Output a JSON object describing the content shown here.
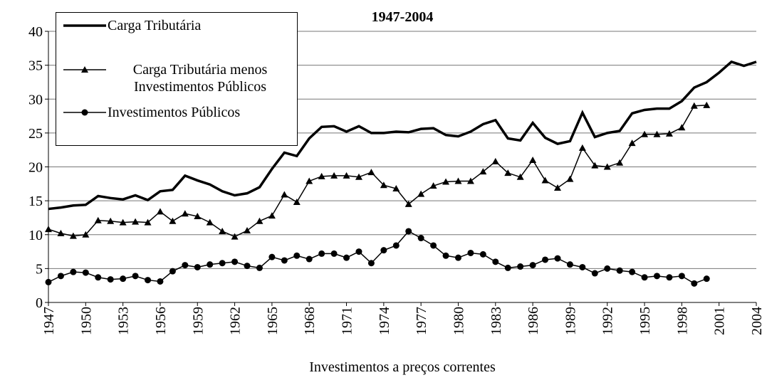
{
  "chart_data": {
    "type": "line",
    "title": "1947-2004",
    "x_label": "Investimentos a preços correntes",
    "x": [
      1947,
      1948,
      1949,
      1950,
      1951,
      1952,
      1953,
      1954,
      1955,
      1956,
      1957,
      1958,
      1959,
      1960,
      1961,
      1962,
      1963,
      1964,
      1965,
      1966,
      1967,
      1968,
      1969,
      1970,
      1971,
      1972,
      1973,
      1974,
      1975,
      1976,
      1977,
      1978,
      1979,
      1980,
      1981,
      1982,
      1983,
      1984,
      1985,
      1986,
      1987,
      1988,
      1989,
      1990,
      1991,
      1992,
      1993,
      1994,
      1995,
      1996,
      1997,
      1998,
      1999,
      2000,
      2001,
      2002,
      2003,
      2004
    ],
    "xlim": [
      1947,
      2004
    ],
    "xticks": [
      1947,
      1950,
      1953,
      1956,
      1959,
      1962,
      1965,
      1968,
      1971,
      1974,
      1977,
      1980,
      1983,
      1986,
      1989,
      1992,
      1995,
      1998,
      2001,
      2004
    ],
    "ylim": [
      0,
      40
    ],
    "yticks": [
      0,
      5,
      10,
      15,
      20,
      25,
      30,
      35,
      40
    ],
    "grid": true,
    "legend": "top-left",
    "series": [
      {
        "name": "Carga Tributária",
        "color": "#000000",
        "marker": "none",
        "values": [
          13.8,
          14.0,
          14.3,
          14.4,
          15.7,
          15.4,
          15.2,
          15.8,
          15.1,
          16.4,
          16.6,
          18.7,
          18.0,
          17.4,
          16.4,
          15.8,
          16.1,
          17.0,
          19.7,
          22.1,
          21.6,
          24.2,
          25.9,
          26.0,
          25.2,
          26.0,
          25.0,
          25.0,
          25.2,
          25.1,
          25.6,
          25.7,
          24.7,
          24.5,
          25.2,
          26.3,
          26.9,
          24.2,
          23.9,
          26.5,
          24.3,
          23.4,
          23.8,
          28.0,
          24.4,
          25.0,
          25.3,
          27.9,
          28.4,
          28.6,
          28.6,
          29.7,
          31.7,
          32.5,
          33.9,
          35.5,
          34.9,
          35.5
        ]
      },
      {
        "name": "Carga Tributária menos Investimentos Públicos",
        "color": "#000000",
        "marker": "triangle",
        "values": [
          10.8,
          10.2,
          9.8,
          10.0,
          12.1,
          12.0,
          11.8,
          11.9,
          11.8,
          13.4,
          12.0,
          13.1,
          12.7,
          11.8,
          10.5,
          9.7,
          10.6,
          12.0,
          12.8,
          15.9,
          14.8,
          17.9,
          18.6,
          18.7,
          18.7,
          18.5,
          19.2,
          17.3,
          16.8,
          14.5,
          16.0,
          17.2,
          17.8,
          17.9,
          17.9,
          19.3,
          20.8,
          19.1,
          18.5,
          21.0,
          18.0,
          16.9,
          18.2,
          22.8,
          20.2,
          20.0,
          20.6,
          23.5,
          24.8,
          24.8,
          24.9,
          25.8,
          29.0,
          29.1,
          null,
          null,
          null,
          null
        ]
      },
      {
        "name": "Investimentos Públicos",
        "color": "#000000",
        "marker": "circle",
        "values": [
          3.0,
          3.9,
          4.5,
          4.4,
          3.7,
          3.4,
          3.5,
          3.9,
          3.3,
          3.1,
          4.6,
          5.5,
          5.2,
          5.6,
          5.8,
          6.0,
          5.4,
          5.1,
          6.7,
          6.2,
          6.9,
          6.4,
          7.2,
          7.2,
          6.6,
          7.5,
          5.8,
          7.7,
          8.4,
          10.5,
          9.5,
          8.4,
          6.9,
          6.6,
          7.3,
          7.1,
          6.0,
          5.1,
          5.3,
          5.5,
          6.3,
          6.5,
          5.6,
          5.2,
          4.3,
          5.0,
          4.7,
          4.5,
          3.7,
          3.9,
          3.7,
          3.9,
          2.8,
          3.5,
          null,
          null,
          null,
          null
        ]
      }
    ]
  }
}
